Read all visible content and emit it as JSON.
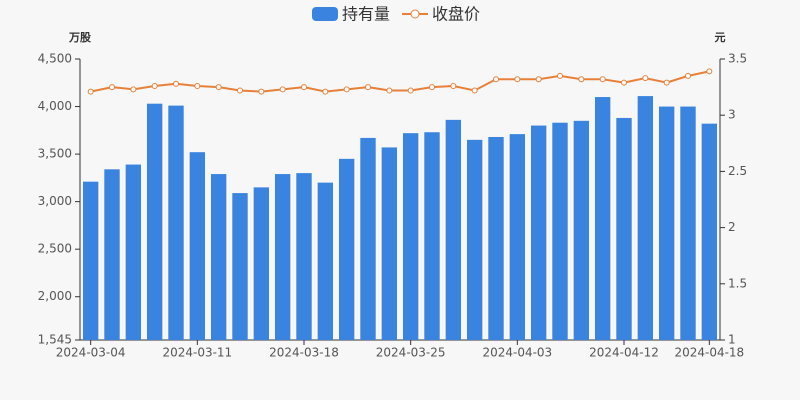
{
  "chart_data": {
    "type": "bar-line",
    "y_label": "万股",
    "y2_label": "元",
    "categories": [
      "2024-03-04",
      null,
      null,
      null,
      null,
      "2024-03-11",
      null,
      null,
      null,
      null,
      "2024-03-18",
      null,
      null,
      null,
      null,
      "2024-03-25",
      null,
      null,
      null,
      null,
      "2024-04-03",
      null,
      null,
      null,
      null,
      "2024-04-12",
      null,
      null,
      null,
      "2024-04-18"
    ],
    "series": [
      {
        "name": "持有量",
        "type": "bar",
        "color": "#3a84e0",
        "values": [
          3210,
          3340,
          3390,
          4030,
          4010,
          3520,
          3290,
          3090,
          3150,
          3290,
          3300,
          3200,
          3450,
          3670,
          3570,
          3720,
          3730,
          3860,
          3650,
          3680,
          3710,
          3800,
          3830,
          3850,
          4100,
          3880,
          4110,
          4000,
          4000,
          3820
        ]
      },
      {
        "name": "收盘价",
        "type": "line",
        "axis": "y2",
        "color": "#e8803a",
        "values": [
          3.21,
          3.25,
          3.23,
          3.26,
          3.28,
          3.26,
          3.25,
          3.22,
          3.21,
          3.23,
          3.25,
          3.21,
          3.23,
          3.25,
          3.22,
          3.22,
          3.25,
          3.26,
          3.22,
          3.32,
          3.32,
          3.32,
          3.35,
          3.32,
          3.32,
          3.29,
          3.33,
          3.29,
          3.35,
          3.39
        ]
      }
    ],
    "ylim": [
      1545,
      4500
    ],
    "yticks": [
      {
        "value": 1545,
        "label": "1,545"
      },
      {
        "value": 2000,
        "label": "2,000"
      },
      {
        "value": 2500,
        "label": "2,500"
      },
      {
        "value": 3000,
        "label": "3,000"
      },
      {
        "value": 3500,
        "label": "3,500"
      },
      {
        "value": 4000,
        "label": "4,000"
      },
      {
        "value": 4500,
        "label": "4,500"
      }
    ],
    "y2lim": [
      1,
      3.5
    ],
    "y2ticks": [
      1,
      1.5,
      2,
      2.5,
      3,
      3.5
    ],
    "legend": "top"
  }
}
